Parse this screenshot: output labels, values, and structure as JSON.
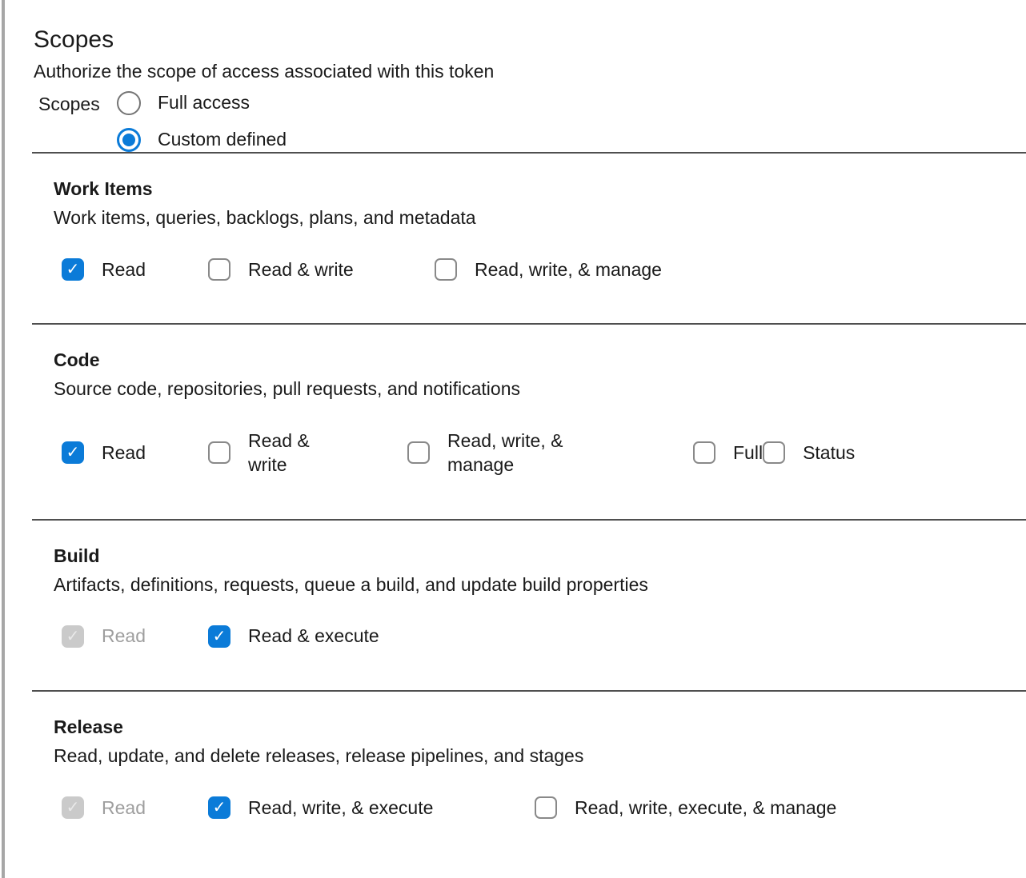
{
  "title": "Scopes",
  "subtitle": "Authorize the scope of access associated with this token",
  "radio_group": {
    "label": "Scopes",
    "options": [
      {
        "label": "Full access",
        "selected": false
      },
      {
        "label": "Custom defined",
        "selected": true
      }
    ]
  },
  "sections": [
    {
      "title": "Work Items",
      "description": "Work items, queries, backlogs, plans, and metadata",
      "options": [
        {
          "label": "Read",
          "checked": true,
          "disabled": false
        },
        {
          "label": "Read & write",
          "checked": false,
          "disabled": false
        },
        {
          "label": "Read, write, & manage",
          "checked": false,
          "disabled": false
        }
      ]
    },
    {
      "title": "Code",
      "description": "Source code, repositories, pull requests, and notifications",
      "options": [
        {
          "label": "Read",
          "checked": true,
          "disabled": false
        },
        {
          "label": "Read & write",
          "checked": false,
          "disabled": false
        },
        {
          "label": "Read, write, & manage",
          "checked": false,
          "disabled": false
        },
        {
          "label": "Full",
          "checked": false,
          "disabled": false
        },
        {
          "label": "Status",
          "checked": false,
          "disabled": false
        }
      ]
    },
    {
      "title": "Build",
      "description": "Artifacts, definitions, requests, queue a build, and update build properties",
      "options": [
        {
          "label": "Read",
          "checked": true,
          "disabled": true
        },
        {
          "label": "Read & execute",
          "checked": true,
          "disabled": false
        }
      ]
    },
    {
      "title": "Release",
      "description": "Read, update, and delete releases, release pipelines, and stages",
      "options": [
        {
          "label": "Read",
          "checked": true,
          "disabled": true
        },
        {
          "label": "Read, write, & execute",
          "checked": true,
          "disabled": false
        },
        {
          "label": "Read, write, execute, & manage",
          "checked": false,
          "disabled": false
        }
      ]
    }
  ],
  "icons": {
    "checkmark": "✓"
  },
  "colors": {
    "accent": "#0b7bd8",
    "disabled_fill": "#cacaca",
    "disabled_text": "#9e9e9e",
    "divider": "#4f4f4f"
  }
}
